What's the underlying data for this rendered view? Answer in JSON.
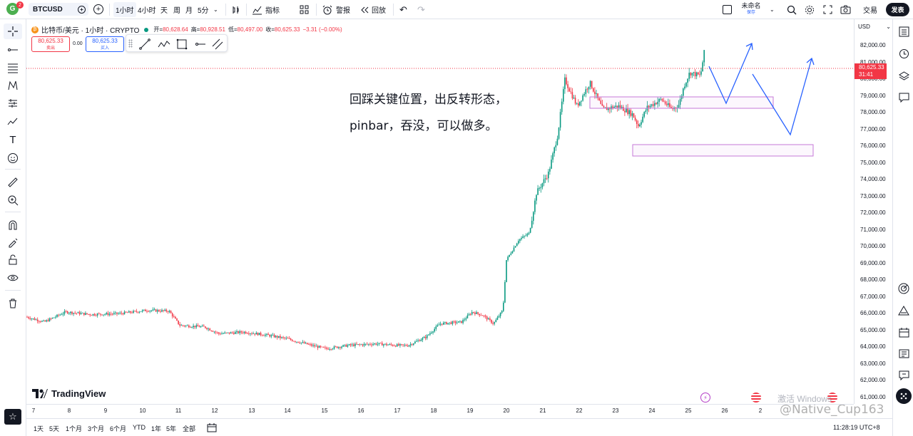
{
  "header": {
    "avatar_letter": "G",
    "avatar_badge": "2",
    "symbol": "BTCUSD",
    "intervals": [
      "1小时",
      "4小时",
      "天",
      "周",
      "月",
      "5分"
    ],
    "active_interval": "1小时",
    "indicators_label": "指标",
    "alert_label": "警报",
    "replay_label": "回放",
    "layout_name": "未命名",
    "layout_sub": "保存",
    "trade_label": "交易",
    "publish_label": "发表"
  },
  "legend": {
    "title": "比特币/美元 · 1小时 · CRYPTO",
    "open_label": "开=",
    "open": "80,628.64",
    "high_label": "高=",
    "high": "80,928.51",
    "low_label": "低=",
    "low": "80,497.00",
    "close_label": "收=",
    "close": "80,625.33",
    "change": "−3.31 (−0.00%)",
    "sell_price": "80,625.33",
    "sell_label": "卖出",
    "spread": "0.00",
    "buy_price": "80,625.33",
    "buy_label": "买入"
  },
  "annotation": {
    "line1": "回踩关键位置，出反转形态，",
    "line2": "pinbar，吞没，可以做多。"
  },
  "price_axis": {
    "currency": "USD",
    "ticks": [
      "82,000.00",
      "81,000.00",
      "80,000.00",
      "79,000.00",
      "78,000.00",
      "77,000.00",
      "76,000.00",
      "75,000.00",
      "74,000.00",
      "73,000.00",
      "72,000.00",
      "71,000.00",
      "70,000.00",
      "69,000.00",
      "68,000.00",
      "67,000.00",
      "66,000.00",
      "65,000.00",
      "64,000.00",
      "63,000.00",
      "62,000.00",
      "61,000.00"
    ],
    "current_price": "80,625.33",
    "countdown": "31:41"
  },
  "time_axis": {
    "ticks": [
      "7",
      "8",
      "9",
      "10",
      "11",
      "12",
      "13",
      "14",
      "15",
      "16",
      "17",
      "18",
      "19",
      "20",
      "21",
      "22",
      "23",
      "24",
      "25",
      "26",
      "2"
    ]
  },
  "bottom": {
    "ranges": [
      "1天",
      "5天",
      "1个月",
      "3个月",
      "6个月",
      "YTD",
      "1年",
      "5年",
      "全部"
    ],
    "clock": "11:28:19 UTC+8",
    "brand": "TradingView",
    "watermark": "激活 Windows",
    "credit": "@Native_Cup163"
  },
  "colors": {
    "up": "#089981",
    "down": "#f23645",
    "accent": "#2962ff",
    "zone": "#c678d8"
  }
}
